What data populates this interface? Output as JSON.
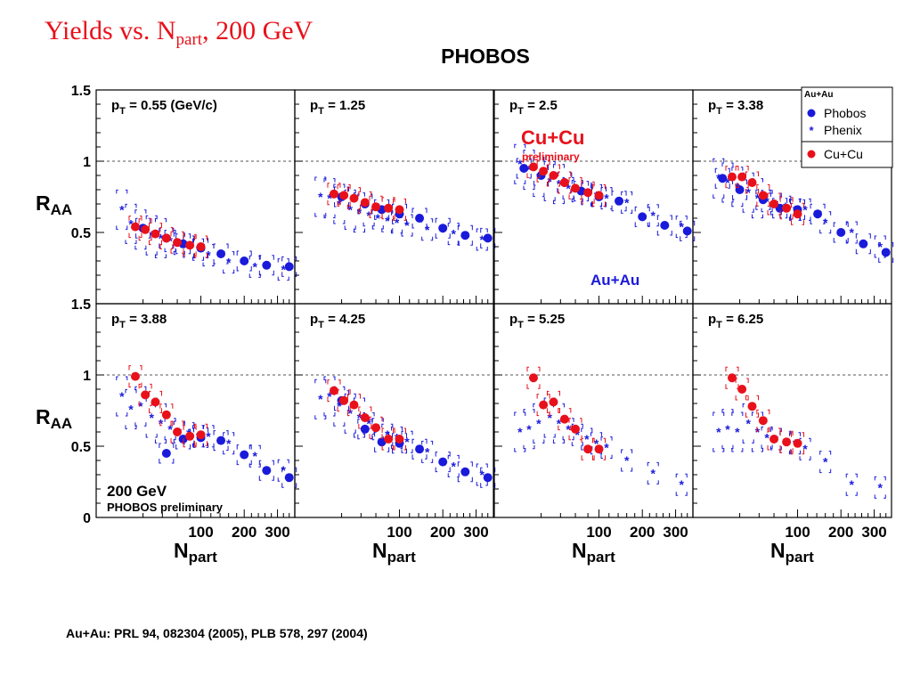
{
  "slide": {
    "title_main": "Yields vs. N",
    "title_sub": "part",
    "title_tail": ", 200 GeV"
  },
  "chart_title": "PHOBOS",
  "reference": "Au+Au: PRL 94, 082304 (2005), PLB 578, 297 (2004)",
  "colors": {
    "phobos": "#1a1adb",
    "phenix": "#1a1adb",
    "cucu": "#e8111b",
    "axis": "#000000",
    "grid": "#555555",
    "title": "#e8111b"
  },
  "chart_data": {
    "type": "scatter",
    "layout": "grid 2 rows x 4 columns",
    "ylabel": "R",
    "ylabel_sub": "AA",
    "xlabel": "N",
    "xlabel_sub": "part",
    "x_scale": "sqrt",
    "xlim": [
      0,
      360
    ],
    "ylim": [
      0,
      1.5
    ],
    "reference_line": 1,
    "xticks": [
      100,
      200,
      300
    ],
    "yticks_top": [
      0.5,
      1,
      1.5
    ],
    "yticks_bottom": [
      0,
      0.5,
      1,
      1.5
    ],
    "legend": {
      "header": "Au+Au",
      "entries": [
        "Phobos",
        "Phenix",
        "Cu+Cu"
      ],
      "position": "top-right"
    },
    "annotations": {
      "cucu_label": "Cu+Cu",
      "cucu_sub": "preliminary",
      "auau_label": "Au+Au",
      "energy": "200 GeV",
      "preliminary": "PHOBOS preliminary"
    },
    "panels": [
      {
        "label": "p",
        "label_sub": "T",
        "label_value": " = 0.55 (GeV/c)",
        "phobos": [
          [
            20,
            0.53
          ],
          [
            45,
            0.46
          ],
          [
            69,
            0.42
          ],
          [
            100,
            0.39
          ],
          [
            142,
            0.35
          ],
          [
            200,
            0.3
          ],
          [
            265,
            0.27
          ],
          [
            340,
            0.26
          ]
        ],
        "phenix": [
          [
            6,
            0.66
          ],
          [
            11,
            0.56
          ],
          [
            18,
            0.52
          ],
          [
            28,
            0.48
          ],
          [
            38,
            0.46
          ],
          [
            50,
            0.44
          ],
          [
            63,
            0.42
          ],
          [
            78,
            0.4
          ],
          [
            95,
            0.38
          ],
          [
            115,
            0.34
          ],
          [
            160,
            0.29
          ],
          [
            230,
            0.26
          ],
          [
            320,
            0.24
          ]
        ],
        "cucu": [
          [
            14,
            0.54
          ],
          [
            22,
            0.52
          ],
          [
            32,
            0.49
          ],
          [
            45,
            0.46
          ],
          [
            60,
            0.43
          ],
          [
            80,
            0.41
          ],
          [
            100,
            0.4
          ]
        ]
      },
      {
        "label": "p",
        "label_sub": "T",
        "label_value": " = 1.25",
        "phobos": [
          [
            20,
            0.75
          ],
          [
            45,
            0.7
          ],
          [
            69,
            0.66
          ],
          [
            100,
            0.63
          ],
          [
            142,
            0.6
          ],
          [
            200,
            0.53
          ],
          [
            265,
            0.48
          ],
          [
            340,
            0.46
          ]
        ],
        "phenix": [
          [
            6,
            0.75
          ],
          [
            11,
            0.74
          ],
          [
            18,
            0.7
          ],
          [
            28,
            0.66
          ],
          [
            38,
            0.64
          ],
          [
            50,
            0.62
          ],
          [
            63,
            0.6
          ],
          [
            78,
            0.58
          ],
          [
            95,
            0.57
          ],
          [
            115,
            0.55
          ],
          [
            160,
            0.52
          ],
          [
            230,
            0.49
          ],
          [
            320,
            0.45
          ]
        ],
        "cucu": [
          [
            14,
            0.77
          ],
          [
            22,
            0.76
          ],
          [
            32,
            0.74
          ],
          [
            45,
            0.71
          ],
          [
            60,
            0.68
          ],
          [
            80,
            0.67
          ],
          [
            100,
            0.66
          ]
        ]
      },
      {
        "label": "p",
        "label_sub": "T",
        "label_value": " = 2.5",
        "phobos": [
          [
            8,
            0.95
          ],
          [
            20,
            0.9
          ],
          [
            45,
            0.85
          ],
          [
            69,
            0.79
          ],
          [
            100,
            0.75
          ],
          [
            142,
            0.72
          ],
          [
            200,
            0.61
          ],
          [
            265,
            0.55
          ],
          [
            340,
            0.51
          ]
        ],
        "phenix": [
          [
            6,
            0.98
          ],
          [
            11,
            0.94
          ],
          [
            18,
            0.89
          ],
          [
            28,
            0.86
          ],
          [
            38,
            0.84
          ],
          [
            50,
            0.81
          ],
          [
            63,
            0.79
          ],
          [
            78,
            0.77
          ],
          [
            95,
            0.76
          ],
          [
            115,
            0.74
          ],
          [
            160,
            0.71
          ],
          [
            230,
            0.62
          ],
          [
            320,
            0.54
          ]
        ],
        "cucu": [
          [
            14,
            0.96
          ],
          [
            22,
            0.93
          ],
          [
            32,
            0.9
          ],
          [
            45,
            0.85
          ],
          [
            60,
            0.81
          ],
          [
            80,
            0.78
          ],
          [
            100,
            0.76
          ]
        ]
      },
      {
        "label": "p",
        "label_sub": "T",
        "label_value": " = 3.38",
        "phobos": [
          [
            8,
            0.88
          ],
          [
            20,
            0.8
          ],
          [
            45,
            0.73
          ],
          [
            69,
            0.67
          ],
          [
            100,
            0.66
          ],
          [
            142,
            0.63
          ],
          [
            200,
            0.5
          ],
          [
            265,
            0.42
          ],
          [
            340,
            0.36
          ]
        ],
        "phenix": [
          [
            6,
            0.88
          ],
          [
            11,
            0.85
          ],
          [
            18,
            0.82
          ],
          [
            28,
            0.78
          ],
          [
            38,
            0.74
          ],
          [
            50,
            0.72
          ],
          [
            63,
            0.7
          ],
          [
            78,
            0.68
          ],
          [
            95,
            0.66
          ],
          [
            115,
            0.66
          ],
          [
            160,
            0.57
          ],
          [
            230,
            0.5
          ],
          [
            320,
            0.4
          ]
        ],
        "cucu": [
          [
            14,
            0.89
          ],
          [
            22,
            0.89
          ],
          [
            32,
            0.85
          ],
          [
            45,
            0.76
          ],
          [
            60,
            0.7
          ],
          [
            80,
            0.67
          ],
          [
            100,
            0.63
          ]
        ]
      },
      {
        "label": "p",
        "label_sub": "T",
        "label_value": " = 3.88",
        "phobos": [
          [
            45,
            0.45
          ],
          [
            69,
            0.55
          ],
          [
            100,
            0.56
          ],
          [
            142,
            0.54
          ],
          [
            200,
            0.44
          ],
          [
            265,
            0.33
          ],
          [
            340,
            0.28
          ]
        ],
        "phenix": [
          [
            6,
            0.85
          ],
          [
            11,
            0.76
          ],
          [
            18,
            0.78
          ],
          [
            28,
            0.7
          ],
          [
            38,
            0.66
          ],
          [
            50,
            0.62
          ],
          [
            63,
            0.6
          ],
          [
            78,
            0.59
          ],
          [
            95,
            0.57
          ],
          [
            115,
            0.57
          ],
          [
            160,
            0.52
          ],
          [
            230,
            0.43
          ],
          [
            320,
            0.33
          ]
        ],
        "cucu": [
          [
            14,
            0.99
          ],
          [
            22,
            0.86
          ],
          [
            32,
            0.81
          ],
          [
            45,
            0.72
          ],
          [
            60,
            0.6
          ],
          [
            80,
            0.57
          ],
          [
            100,
            0.58
          ]
        ]
      },
      {
        "label": "p",
        "label_sub": "T",
        "label_value": " = 4.25",
        "phobos": [
          [
            20,
            0.82
          ],
          [
            45,
            0.62
          ],
          [
            69,
            0.53
          ],
          [
            100,
            0.52
          ],
          [
            142,
            0.48
          ],
          [
            200,
            0.39
          ],
          [
            265,
            0.32
          ],
          [
            340,
            0.28
          ]
        ],
        "phenix": [
          [
            6,
            0.83
          ],
          [
            11,
            0.85
          ],
          [
            18,
            0.78
          ],
          [
            28,
            0.73
          ],
          [
            38,
            0.7
          ],
          [
            50,
            0.66
          ],
          [
            63,
            0.62
          ],
          [
            78,
            0.58
          ],
          [
            95,
            0.56
          ],
          [
            115,
            0.53
          ],
          [
            160,
            0.46
          ],
          [
            230,
            0.36
          ],
          [
            320,
            0.3
          ]
        ],
        "cucu": [
          [
            14,
            0.89
          ],
          [
            22,
            0.82
          ],
          [
            32,
            0.79
          ],
          [
            45,
            0.7
          ],
          [
            60,
            0.63
          ],
          [
            80,
            0.55
          ],
          [
            100,
            0.55
          ]
        ]
      },
      {
        "label": "p",
        "label_sub": "T",
        "label_value": " = 5.25",
        "phenix": [
          [
            6,
            0.6
          ],
          [
            11,
            0.62
          ],
          [
            18,
            0.66
          ],
          [
            28,
            0.7
          ],
          [
            38,
            0.66
          ],
          [
            50,
            0.62
          ],
          [
            63,
            0.58
          ],
          [
            78,
            0.55
          ],
          [
            95,
            0.52
          ],
          [
            115,
            0.49
          ],
          [
            160,
            0.4
          ],
          [
            230,
            0.31
          ],
          [
            320,
            0.23
          ]
        ],
        "cucu": [
          [
            14,
            0.98
          ],
          [
            22,
            0.79
          ],
          [
            32,
            0.81
          ],
          [
            45,
            0.69
          ],
          [
            60,
            0.62
          ],
          [
            80,
            0.48
          ],
          [
            100,
            0.48
          ]
        ]
      },
      {
        "label": "p",
        "label_sub": "T",
        "label_value": " = 6.25",
        "phenix": [
          [
            6,
            0.6
          ],
          [
            11,
            0.62
          ],
          [
            18,
            0.6
          ],
          [
            28,
            0.66
          ],
          [
            38,
            0.6
          ],
          [
            50,
            0.56
          ],
          [
            63,
            0.55
          ],
          [
            78,
            0.53
          ],
          [
            95,
            0.52
          ],
          [
            115,
            0.48
          ],
          [
            160,
            0.39
          ],
          [
            230,
            0.23
          ],
          [
            320,
            0.21
          ]
        ],
        "cucu": [
          [
            14,
            0.98
          ],
          [
            22,
            0.9
          ],
          [
            32,
            0.78
          ],
          [
            45,
            0.68
          ],
          [
            60,
            0.55
          ],
          [
            80,
            0.53
          ],
          [
            100,
            0.52
          ]
        ]
      }
    ]
  }
}
